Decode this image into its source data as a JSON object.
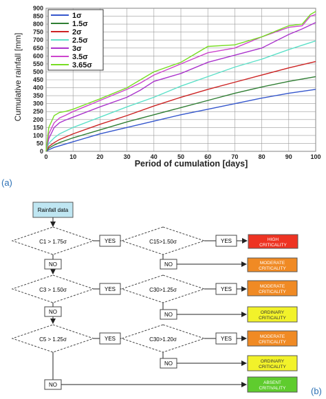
{
  "panel_labels": {
    "a": "(a)",
    "b": "(b)"
  },
  "chart_data": {
    "type": "line",
    "title": "",
    "xlabel": "Period of cumulation [days]",
    "ylabel": "Cumulative rainfall [mm]",
    "xlim": [
      0,
      100
    ],
    "ylim": [
      0,
      900
    ],
    "xticks": [
      0,
      10,
      20,
      30,
      40,
      50,
      60,
      70,
      80,
      90,
      100
    ],
    "yticks": [
      0,
      50,
      100,
      150,
      200,
      250,
      300,
      350,
      400,
      450,
      500,
      550,
      600,
      650,
      700,
      750,
      800,
      850,
      900
    ],
    "grid": true,
    "legend_position": "top-left",
    "series": [
      {
        "name": "1σ",
        "color": "#3355cc",
        "x": [
          0,
          1,
          3,
          5,
          10,
          20,
          30,
          40,
          50,
          60,
          70,
          80,
          90,
          100
        ],
        "y": [
          0,
          10,
          25,
          35,
          60,
          110,
          150,
          190,
          230,
          265,
          300,
          335,
          365,
          390
        ]
      },
      {
        "name": "1.5σ",
        "color": "#2e7d32",
        "x": [
          0,
          1,
          3,
          5,
          10,
          20,
          30,
          40,
          50,
          60,
          70,
          80,
          90,
          100
        ],
        "y": [
          0,
          20,
          40,
          55,
          85,
          135,
          185,
          230,
          275,
          320,
          365,
          405,
          440,
          470
        ]
      },
      {
        "name": "2σ",
        "color": "#cc2222",
        "x": [
          0,
          1,
          3,
          5,
          10,
          20,
          30,
          40,
          50,
          60,
          70,
          80,
          90,
          100
        ],
        "y": [
          0,
          30,
          55,
          75,
          110,
          170,
          225,
          285,
          340,
          390,
          435,
          480,
          525,
          565
        ]
      },
      {
        "name": "2.5σ",
        "color": "#5ce0c8",
        "x": [
          0,
          1,
          3,
          5,
          10,
          20,
          30,
          40,
          50,
          60,
          70,
          80,
          90,
          100
        ],
        "y": [
          0,
          50,
          85,
          110,
          150,
          215,
          280,
          340,
          410,
          470,
          530,
          580,
          640,
          695
        ]
      },
      {
        "name": "3σ",
        "color": "#aa33cc",
        "x": [
          0,
          1,
          3,
          5,
          7,
          10,
          20,
          30,
          35,
          40,
          50,
          60,
          70,
          80,
          90,
          95,
          100
        ],
        "y": [
          0,
          80,
          150,
          180,
          195,
          215,
          280,
          340,
          385,
          440,
          490,
          560,
          605,
          650,
          735,
          770,
          810
        ]
      },
      {
        "name": "3.5σ",
        "color": "#cc44cc",
        "x": [
          0,
          1,
          3,
          5,
          7,
          10,
          20,
          30,
          35,
          40,
          50,
          60,
          70,
          80,
          90,
          95,
          98,
          100
        ],
        "y": [
          0,
          110,
          180,
          210,
          225,
          250,
          320,
          390,
          430,
          480,
          550,
          620,
          650,
          720,
          780,
          790,
          850,
          860
        ]
      },
      {
        "name": "3.65σ",
        "color": "#77dd22",
        "x": [
          0,
          1,
          3,
          5,
          7,
          10,
          20,
          30,
          35,
          40,
          50,
          60,
          70,
          80,
          90,
          95,
          98,
          100
        ],
        "y": [
          0,
          150,
          225,
          245,
          250,
          265,
          330,
          400,
          450,
          500,
          560,
          660,
          670,
          720,
          790,
          800,
          860,
          880
        ]
      }
    ]
  },
  "flowchart": {
    "start": "Rainfall data",
    "conditions": {
      "c1": "C1 > 1.75σ",
      "c15": "C15>1.50σ",
      "c3": "C3 > 1.50σ",
      "c30a": "C30>1.25σ",
      "c5": "C5 > 1.25σ",
      "c30b": "C30>1.20σ"
    },
    "yes": "YES",
    "no": "NO",
    "outcomes": [
      {
        "line1": "HIGH",
        "line2": "CRITICALITY",
        "color": "#ee3322"
      },
      {
        "line1": "MODERATE",
        "line2": "CRITICALITY",
        "color": "#f08a24"
      },
      {
        "line1": "MODERATE",
        "line2": "CRITICALITY",
        "color": "#f08a24"
      },
      {
        "line1": "ORDINARY",
        "line2": "CRITICALITY",
        "color": "#f2f22a"
      },
      {
        "line1": "MODERATE",
        "line2": "CRITICALITY",
        "color": "#f08a24"
      },
      {
        "line1": "ORDINARY",
        "line2": "CRITICALITY",
        "color": "#f2f22a"
      },
      {
        "line1": "ABSENT",
        "line2": "CRITIVALITY",
        "color": "#5fcc2e"
      }
    ]
  }
}
